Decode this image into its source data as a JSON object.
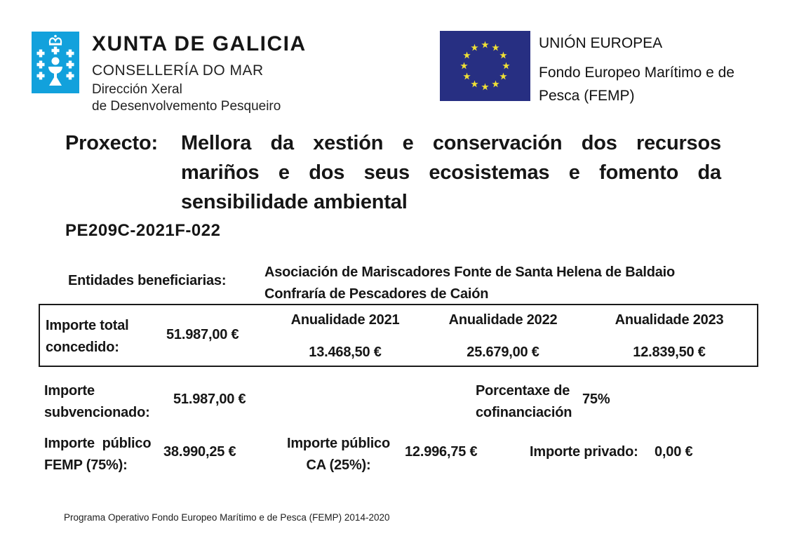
{
  "colors": {
    "xunta_blue": "#12A1DC",
    "eu_flag_blue": "#272F82",
    "eu_star_yellow": "#F1E234",
    "text_color": "#161616",
    "border_color": "#1a1a1a"
  },
  "logos": {
    "xunta": "xunta-de-galicia-crest",
    "eu": "eu-flag-12-stars"
  },
  "header": {
    "xunta": {
      "title": "XUNTA DE GALICIA",
      "department": "CONSELLERÍA DO MAR",
      "direction_line1": "Dirección Xeral",
      "direction_line2": "de Desenvolvemento Pesqueiro"
    },
    "eu": {
      "title": "UNIÓN EUROPEA",
      "fund_line1": "Fondo Europeo Marítimo e de",
      "fund_line2": "Pesca  (FEMP)"
    }
  },
  "project": {
    "label": "Proxecto:",
    "title_lines": [
      "Mellora da xestión e conservación dos recursos",
      "mariños e dos seus ecosistemas e fomento da",
      "sensibilidade ambiental"
    ],
    "code": "PE209C-2021F-022"
  },
  "beneficiaries": {
    "label": "Entidades beneficiarias:",
    "entities": [
      "Asociación de Mariscadores Fonte de Santa Helena de Baldaio",
      "Confraría de Pescadores de Caión"
    ]
  },
  "totals_table": {
    "label_line1": "Importe total",
    "label_line2": "concedido:",
    "total_value": "51.987,00 €",
    "annuities": [
      {
        "label": "Anualidade 2021",
        "value": "13.468,50 €"
      },
      {
        "label": "Anualidade 2022",
        "value": "25.679,00 €"
      },
      {
        "label": "Anualidade 2023",
        "value": "12.839,50 €"
      }
    ]
  },
  "subsidy_row": {
    "label_line1": "Importe",
    "label_line2": "subvencionado:",
    "value": "51.987,00 €",
    "cofinancing_label_line1": "Porcentaxe de",
    "cofinancing_label_line2": "cofinanciación",
    "cofinancing_value": "75%"
  },
  "breakdown_row": {
    "femp_label": "Importe  público\nFEMP (75%):",
    "femp_value": "38.990,25 €",
    "ca_label_line1": "Importe público",
    "ca_label_line2": "CA (25%):",
    "ca_value": "12.996,75 €",
    "private_label": "Importe privado:",
    "private_value": "0,00 €"
  },
  "footer": {
    "text": "Programa Operativo Fondo Europeo Marítimo e de Pesca (FEMP) 2014-2020"
  }
}
